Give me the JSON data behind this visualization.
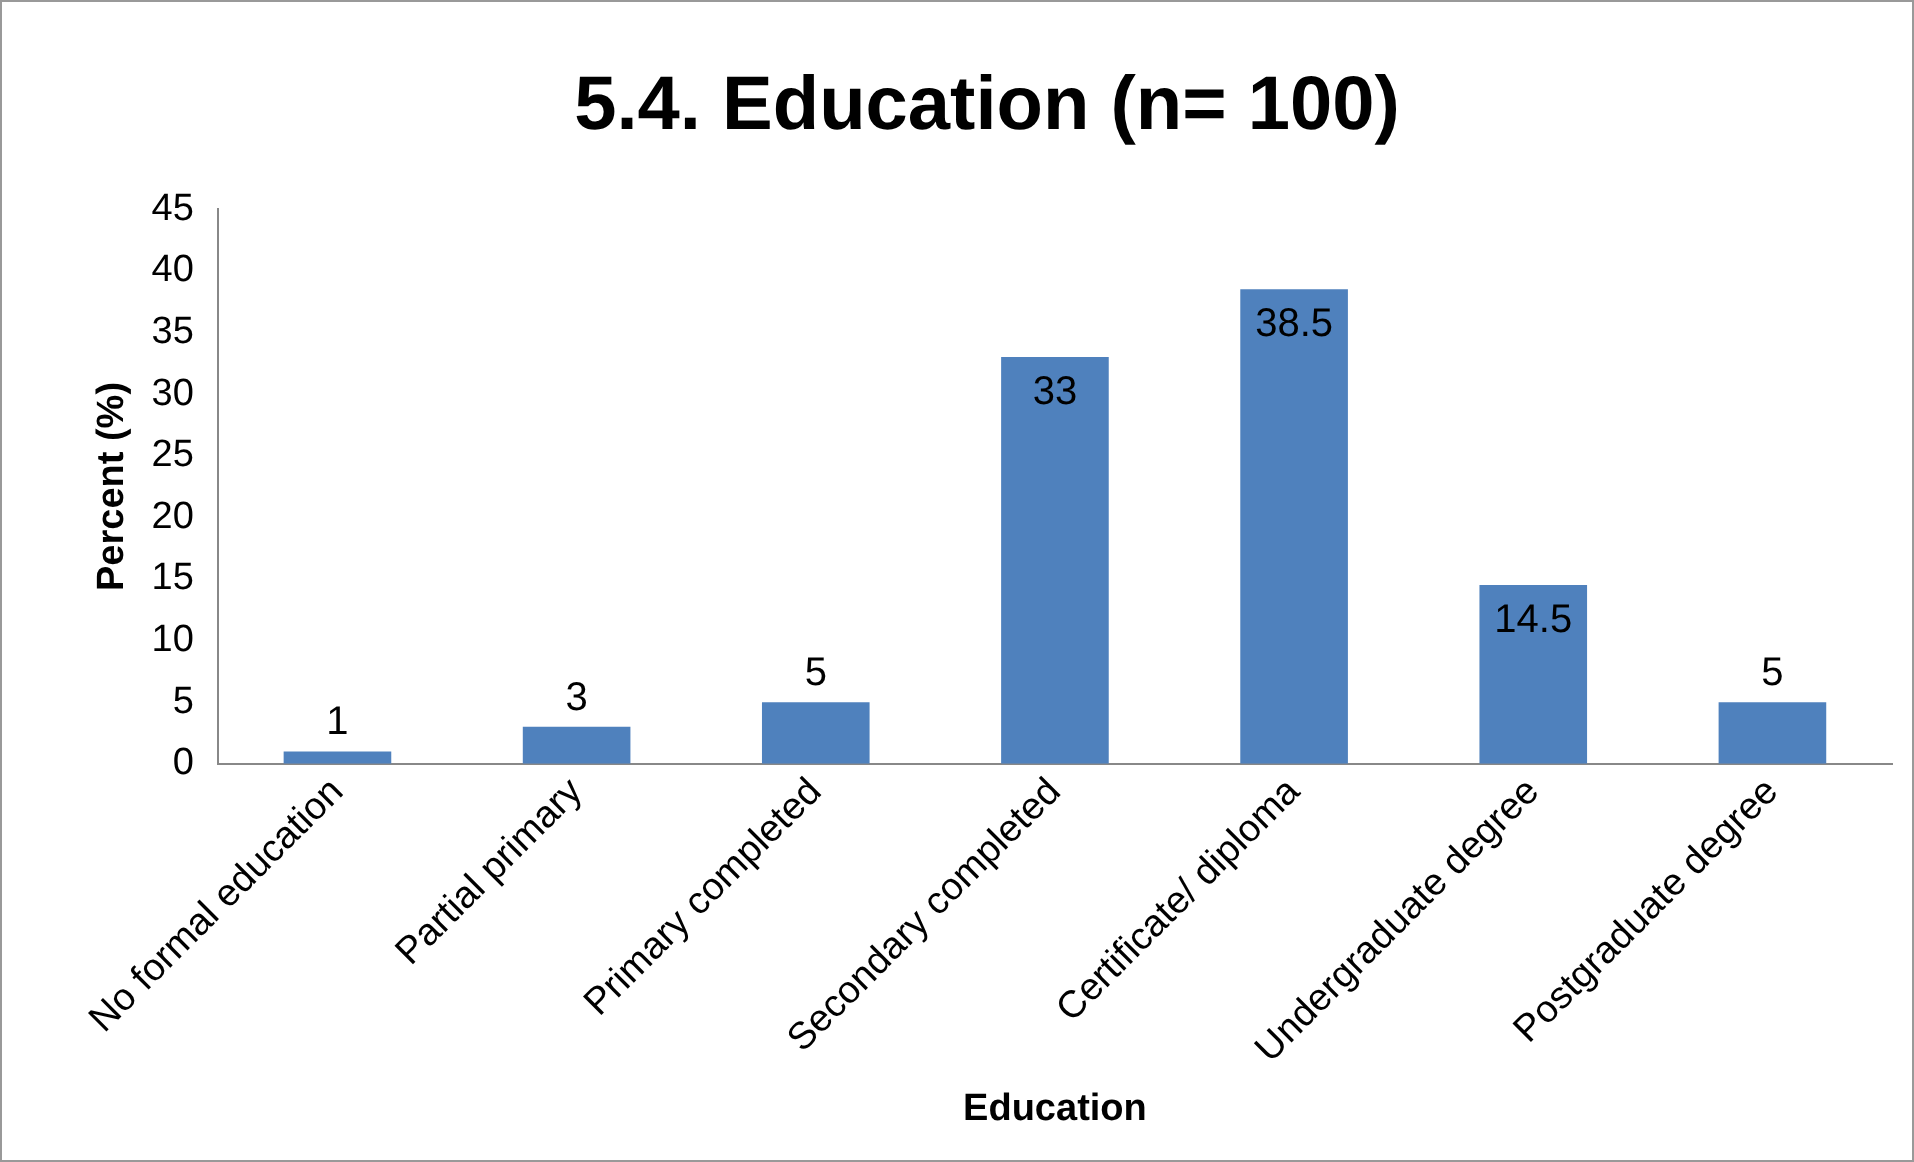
{
  "chart_data": {
    "type": "bar",
    "title": "5.4. Education (n= 100)",
    "xlabel": "Education",
    "ylabel": "Percent (%)",
    "categories": [
      "No formal education",
      "Partial primary",
      "Primary completed",
      "Secondary completed",
      "Certificate/ diploma",
      "Undergraduate degree",
      "Postgraduate degree"
    ],
    "values": [
      1,
      3,
      5,
      33,
      38.5,
      14.5,
      5
    ],
    "color": "#4f81bd",
    "ylim": [
      0,
      45
    ],
    "yticks": [
      0,
      5,
      10,
      15,
      20,
      25,
      30,
      35,
      40,
      45
    ],
    "grid": false,
    "legend": false,
    "data_labels": true
  }
}
